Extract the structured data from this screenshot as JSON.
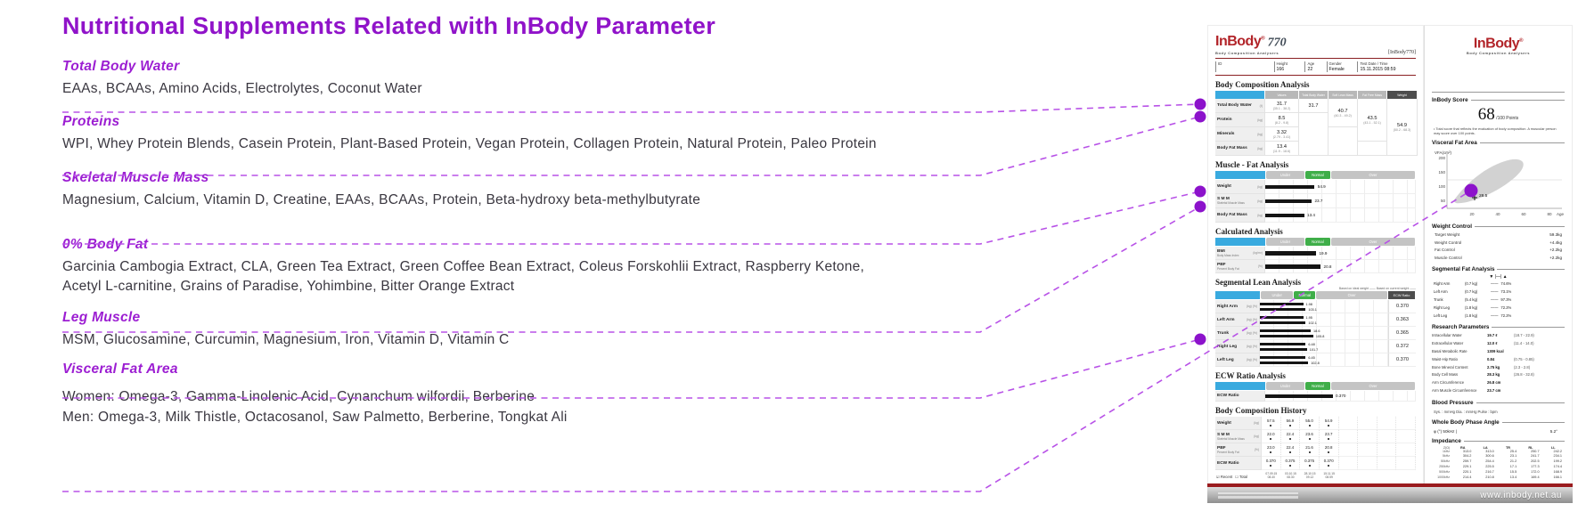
{
  "page_title": "Nutritional Supplements Related with InBody Parameter",
  "colors": {
    "title_purple": "#9013c9",
    "heading_purple": "#9c1ed2",
    "dash_purple": "#b852e7",
    "dot_purple": "#8c12cb",
    "logo_red": "#b22429",
    "table_blue": "#39aadf",
    "normal_green": "#3fae49",
    "footer_red": "#9a1b1e"
  },
  "sections": [
    {
      "heading": "Total Body Water",
      "lines": [
        "EAAs, BCAAs, Amino Acids, Electrolytes, Coconut Water"
      ]
    },
    {
      "heading": "Proteins",
      "lines": [
        "WPI, Whey Protein Blends, Casein Protein, Plant-Based Protein, Vegan Protein, Collagen Protein, Natural Protein, Paleo Protein"
      ]
    },
    {
      "heading": "Skeletal Muscle Mass",
      "lines": [
        "Magnesium, Calcium, Vitamin D, Creatine, EAAs, BCAAs, Protein, Beta-hydroxy beta-methylbutyrate"
      ]
    },
    {
      "heading": "0% Body Fat",
      "lines": [
        "Garcinia Cambogia Extract, CLA, Green Tea Extract, Green Coffee Bean Extract, Coleus Forskohlii Extract, Raspberry Ketone,",
        "Acetyl L-carnitine, Grains of Paradise, Yohimbine, Bitter Orange Extract"
      ]
    },
    {
      "heading": "Leg Muscle",
      "lines": [
        "MSM, Glucosamine, Curcumin, Magnesium, Iron, Vitamin D, Vitamin C"
      ]
    },
    {
      "heading": "Visceral Fat Area",
      "lines": [
        "Women: Omega-3, Gamma-Linolenic Acid, Cynanchum wilfordii, Berberine",
        "Men: Omega-3, Milk Thistle, Octacosanol, Saw Palmetto, Berberine, Tongkat Ali"
      ]
    }
  ],
  "report": {
    "page1": {
      "brand": "InBody",
      "model": "770",
      "brand_sub": "Body Composition Analysers",
      "doc_ref": "[InBody770]",
      "patient": {
        "cells": [
          {
            "label": "ID",
            "value": ""
          },
          {
            "label": "Height",
            "value": "166"
          },
          {
            "label": "Age",
            "value": "22"
          },
          {
            "label": "Gender",
            "value": "Female"
          },
          {
            "label": "Test Date / Time",
            "value": "15.11.2015  08:59"
          }
        ]
      },
      "body_composition": {
        "title": "Body Composition Analysis",
        "columns": [
          "Values",
          "Total Body Water",
          "Soft Lean Mass",
          "Fat Free Mass",
          "Weight"
        ],
        "rows": [
          {
            "label": "Total Body Water",
            "unit": "(ℓ)",
            "value": "31.7",
            "range": "(35.1 - 38.2)"
          },
          {
            "label": "Protein",
            "unit": "(kg)",
            "value": "8.5",
            "range": "(8.2 - 9.8)"
          },
          {
            "label": "Minerals",
            "unit": "(kg)",
            "value": "3.32",
            "range": "(2.79 - 3.41)"
          },
          {
            "label": "Body Fat Mass",
            "unit": "(kg)",
            "value": "13.4",
            "range": "(11.9 - 18.6)"
          }
        ],
        "merged": {
          "tbw": {
            "value": "31.7",
            "range": ""
          },
          "slm": {
            "value": "40.7",
            "range": "(40.3 - 49.2)"
          },
          "ffm": {
            "value": "43.5",
            "range": "(43.1 - 52.1)"
          },
          "weight": {
            "value": "54.9",
            "range": "(50.2 - 68.3)"
          }
        }
      },
      "muscle_fat": {
        "title": "Muscle - Fat Analysis",
        "bands": [
          "Under",
          "Normal",
          "Over"
        ],
        "rows": [
          {
            "label": "Weight",
            "sub": "",
            "unit": "(kg)",
            "value": "54.9",
            "pct": 33
          },
          {
            "label": "S M M",
            "sub": "Skeletal Muscle Mass",
            "unit": "(kg)",
            "value": "23.7",
            "pct": 31
          },
          {
            "label": "Body Fat Mass",
            "sub": "",
            "unit": "(kg)",
            "value": "13.4",
            "pct": 26
          }
        ]
      },
      "calculated": {
        "title": "Calculated Analysis",
        "bands": [
          "Under",
          "Normal",
          "Over"
        ],
        "rows": [
          {
            "label": "BMI",
            "sub": "Body Mass Index",
            "unit": "(kg/m²)",
            "value": "19.9",
            "pct": 34
          },
          {
            "label": "PBF",
            "sub": "Percent Body Fat",
            "unit": "(%)",
            "value": "20.8",
            "pct": 37
          }
        ]
      },
      "segmental_lean": {
        "title": "Segmental Lean Analysis",
        "legend": "Based on ideal weight ——    Based on current weight ——",
        "bands": [
          "Under",
          "Normal",
          "Over"
        ],
        "ecw_header": "ECW Ratio",
        "rows": [
          {
            "label": "Right Arm",
            "kg": "1.98",
            "pct": "103.1",
            "w1": 34,
            "w2": 36,
            "ecw": "0.370"
          },
          {
            "label": "Left Arm",
            "kg": "1.95",
            "pct": "102.1",
            "w1": 34,
            "w2": 36,
            "ecw": "0.363"
          },
          {
            "label": "Trunk",
            "kg": "18.6",
            "pct": "105.8",
            "w1": 40,
            "w2": 42,
            "ecw": "0.365"
          },
          {
            "label": "Right Leg",
            "kg": "6.48",
            "pct": "101.7",
            "w1": 36,
            "w2": 37,
            "ecw": "0.372"
          },
          {
            "label": "Left Leg",
            "kg": "6.45",
            "pct": "102.8",
            "w1": 36,
            "w2": 38,
            "ecw": "0.370"
          }
        ]
      },
      "ecw_analysis": {
        "title": "ECW Ratio Analysis",
        "bands": [
          "Under",
          "Normal",
          "Over"
        ],
        "row": {
          "label": "ECW Ratio",
          "sub": "",
          "unit": "",
          "value": "0.370",
          "pct": 45
        }
      },
      "history": {
        "title": "Body Composition History",
        "rows": [
          {
            "label": "Weight",
            "sub": "",
            "unit": "(kg)",
            "values": [
              "57.5",
              "56.9",
              "55.0",
              "54.9"
            ]
          },
          {
            "label": "S M M",
            "sub": "Skeletal Muscle Mass",
            "unit": "(kg)",
            "values": [
              "22.0",
              "22.4",
              "23.6",
              "23.7"
            ]
          },
          {
            "label": "PBF",
            "sub": "Percent Body Fat",
            "unit": "(%)",
            "values": [
              "23.0",
              "22.4",
              "21.6",
              "20.8"
            ]
          },
          {
            "label": "ECW Ratio",
            "sub": "",
            "unit": "",
            "values": [
              "0.370",
              "0.375",
              "0.375",
              "0.370"
            ]
          }
        ],
        "dates": [
          "07.09.15",
          "03.10.15",
          "28.10.15",
          "15.11.15"
        ],
        "times": [
          "08.40",
          "08.30",
          "09.12",
          "08.59"
        ],
        "recent_label": "Recent",
        "total_label": "Total"
      }
    },
    "page2": {
      "brand": "InBody",
      "brand_sub": "Body Composition Analysers",
      "score": {
        "title": "InBody Score",
        "value": "68",
        "suffix": "/100 Points",
        "note": "• Total score that reflects the evaluation of body composition. A muscular person may score over 100 points."
      },
      "vfa": {
        "title": "Visceral Fat Area",
        "ylabel": "VFA",
        "yunit": "(cm²)",
        "yticks": [
          "200",
          "150",
          "100",
          "50"
        ],
        "xticks": [
          "20",
          "40",
          "60",
          "80"
        ],
        "xlabel": "Age",
        "value": "28.5"
      },
      "weight_control": {
        "title": "Weight Control",
        "rows": [
          {
            "k": "Target Weight",
            "v": "59.3kg"
          },
          {
            "k": "Weight Control",
            "v": "+4.4kg"
          },
          {
            "k": "Fat Control",
            "v": "+2.2kg"
          },
          {
            "k": "Muscle Control",
            "v": "+2.2kg"
          }
        ]
      },
      "segmental_fat": {
        "title": "Segmental Fat Analysis",
        "marker_row": "▼  |—|  ▲",
        "rows": [
          {
            "label": "Right Arm",
            "kg": "(0.7 kg)",
            "pct": "74.6%"
          },
          {
            "label": "Left Arm",
            "kg": "(0.7 kg)",
            "pct": "73.1%"
          },
          {
            "label": "Trunk",
            "kg": "(5.4 kg)",
            "pct": "97.3%"
          },
          {
            "label": "Right Leg",
            "kg": "(1.8 kg)",
            "pct": "72.2%"
          },
          {
            "label": "Left Leg",
            "kg": "(1.8 kg)",
            "pct": "72.2%"
          }
        ]
      },
      "research": {
        "title": "Research Parameters",
        "rows": [
          {
            "k": "Intracellular Water",
            "v": "19.7 ℓ",
            "rg": "(18.7 - 22.9)"
          },
          {
            "k": "Extracellular Water",
            "v": "12.0 ℓ",
            "rg": "(11.4 - 14.0)"
          },
          {
            "k": "Basal Metabolic Rate",
            "v": "1309 kcal",
            "rg": ""
          },
          {
            "k": "Waist-Hip Ratio",
            "v": "0.84",
            "rg": "(0.75 - 0.85)"
          },
          {
            "k": "Bone Mineral Content",
            "v": "2.75 kg",
            "rg": "(2.3 - 2.8)"
          },
          {
            "k": "Body Cell Mass",
            "v": "28.3 kg",
            "rg": "(26.8 - 32.8)"
          },
          {
            "k": "Arm Circumference",
            "v": "26.8 cm",
            "rg": ""
          },
          {
            "k": "Arm Muscle Circumference",
            "v": "23.7 cm",
            "rg": ""
          }
        ]
      },
      "blood_pressure": {
        "title": "Blood Pressure",
        "line": "Sys. :  mmHg     Dia. :  mmHg     Pulse :  bpm"
      },
      "phase_angle": {
        "title": "Whole Body Phase Angle",
        "label": "φ (°) 50kHz |",
        "value": "5.2°"
      },
      "impedance": {
        "title": "Impedance",
        "corner": "Z(Ω)",
        "columns": [
          "RA",
          "LA",
          "TR",
          "RL",
          "LL"
        ],
        "row_labels": [
          "1kHz",
          "5kHz",
          "50kHz",
          "250kHz",
          "500kHz",
          "1000kHz"
        ],
        "values": [
          [
            "313.0",
            "313.0",
            "25.4",
            "250.7",
            "242.2"
          ],
          [
            "304.2",
            "300.6",
            "23.1",
            "241.7",
            "234.1"
          ],
          [
            "259.7",
            "254.4",
            "21.2",
            "202.5",
            "199.2"
          ],
          [
            "229.1",
            "225.5",
            "17.1",
            "177.3",
            "174.4"
          ],
          [
            "220.1",
            "216.7",
            "15.5",
            "172.0",
            "168.9"
          ],
          [
            "214.4",
            "210.8",
            "13.4",
            "169.4",
            "166.1"
          ]
        ]
      }
    },
    "footer": {
      "url": "www.inbody.net.au"
    }
  }
}
